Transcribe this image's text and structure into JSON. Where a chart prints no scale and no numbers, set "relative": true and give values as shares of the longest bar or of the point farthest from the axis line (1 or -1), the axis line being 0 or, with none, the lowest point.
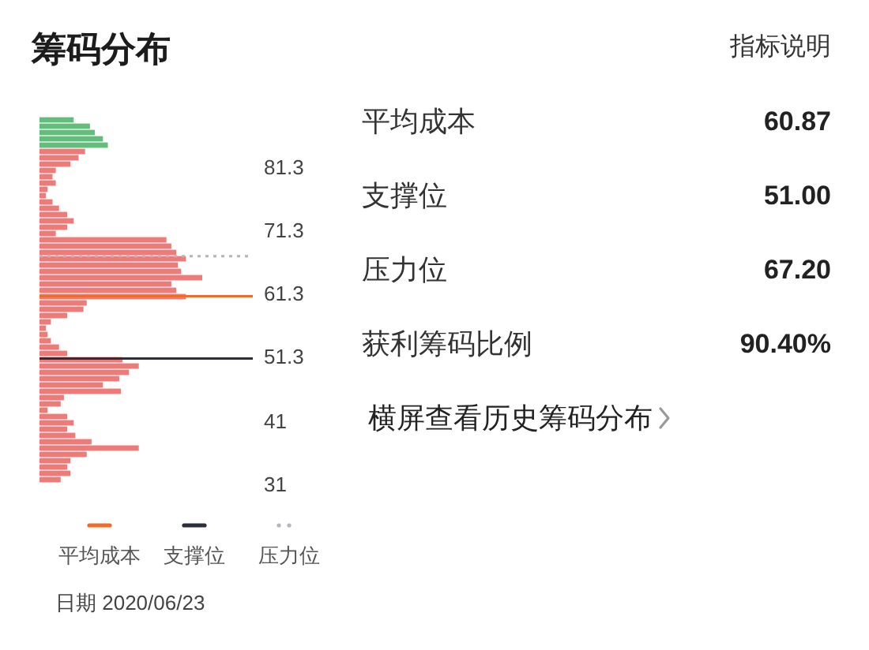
{
  "chart_data": [
    {
      "type": "bar",
      "orientation": "horizontal",
      "relative": true,
      "title": "筹码分布",
      "x": [
        31.8,
        32.8,
        33.8,
        34.8,
        35.8,
        36.8,
        37.8,
        38.8,
        39.8,
        40.8,
        41.8,
        42.8,
        43.8,
        44.8,
        45.8,
        46.8,
        47.8,
        48.8,
        49.8,
        50.8,
        51.8,
        52.8,
        53.8,
        54.8,
        55.8,
        56.8,
        57.8,
        58.8,
        59.8,
        60.8,
        61.8,
        62.8,
        63.8,
        64.8,
        65.8,
        66.8,
        67.8,
        68.8,
        69.8,
        70.8,
        71.8,
        72.8,
        73.8,
        74.8,
        75.8,
        76.8,
        77.8,
        78.8,
        79.8,
        80.8,
        81.8,
        82.8,
        83.8,
        84.8,
        85.8,
        86.8,
        87.8,
        88.8
      ],
      "values": [
        0.13,
        0.19,
        0.17,
        0.19,
        0.29,
        0.61,
        0.32,
        0.22,
        0.17,
        0.21,
        0.17,
        0.05,
        0.13,
        0.15,
        0.5,
        0.39,
        0.49,
        0.55,
        0.61,
        0.51,
        0.17,
        0.12,
        0.07,
        0.05,
        0.04,
        0.07,
        0.17,
        0.27,
        0.29,
        0.9,
        0.84,
        0.81,
        1,
        0.87,
        0.85,
        0.9,
        0.84,
        0.81,
        0.78,
        0.1,
        0.17,
        0.21,
        0.17,
        0.12,
        0.08,
        0.04,
        0.05,
        0.1,
        0.08,
        0.1,
        0.19,
        0.24,
        0.28,
        0.42,
        0.39,
        0.34,
        0.31,
        0.21
      ],
      "colors": [
        "#f07a78",
        "#f07a78",
        "#f07a78",
        "#f07a78",
        "#f07a78",
        "#f07a78",
        "#f07a78",
        "#f07a78",
        "#f07a78",
        "#f07a78",
        "#f07a78",
        "#f07a78",
        "#f07a78",
        "#f07a78",
        "#f07a78",
        "#f07a78",
        "#f07a78",
        "#f07a78",
        "#f07a78",
        "#f07a78",
        "#f07a78",
        "#f07a78",
        "#f07a78",
        "#f07a78",
        "#f07a78",
        "#f07a78",
        "#f07a78",
        "#f07a78",
        "#f07a78",
        "#f07a78",
        "#f07a78",
        "#f07a78",
        "#f07a78",
        "#f07a78",
        "#f07a78",
        "#f07a78",
        "#f07a78",
        "#f07a78",
        "#f07a78",
        "#f07a78",
        "#f07a78",
        "#f07a78",
        "#f07a78",
        "#f07a78",
        "#f07a78",
        "#f07a78",
        "#f07a78",
        "#f07a78",
        "#f07a78",
        "#f07a78",
        "#f07a78",
        "#f07a78",
        "#f07a78",
        "#63bd7d",
        "#63bd7d",
        "#63bd7d",
        "#63bd7d",
        "#63bd7d"
      ],
      "ylim": [
        31,
        89.3
      ],
      "yticks": [
        31,
        41,
        51.3,
        61.3,
        71.3,
        81.3
      ],
      "ref_lines": [
        {
          "axis": "y",
          "value": 60.87,
          "label": "平均成本",
          "color": "#f26b2b",
          "line_style": "solid"
        },
        {
          "axis": "y",
          "value": 51.0,
          "label": "支撑位",
          "color": "#2b2e3b",
          "line_style": "solid"
        },
        {
          "axis": "y",
          "value": 67.2,
          "label": "压力位",
          "color": "#b5b5bd",
          "line_style": "dotted"
        }
      ],
      "legend": "bottom",
      "annotations": [
        "日期 2020/06/23"
      ]
    },
    {
      "type": "other",
      "annotations": [
        "指标说明",
        "平均成本",
        "60.87",
        "支撑位",
        "51.00",
        "压力位",
        "67.20",
        "获利筹码比例",
        "90.40%",
        "横屏查看历史筹码分布"
      ]
    }
  ]
}
